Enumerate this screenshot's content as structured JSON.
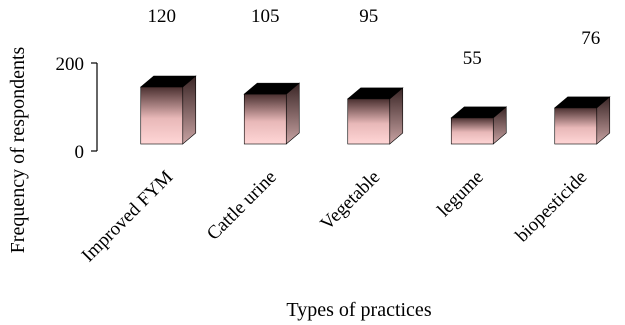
{
  "chart_data": {
    "type": "bar",
    "categories": [
      "Improved FYM",
      "Cattle urine",
      "Vegetable",
      "legume",
      "biopesticide"
    ],
    "values": [
      120,
      105,
      95,
      55,
      76
    ],
    "data_labels": [
      "120",
      "105",
      "95",
      "55",
      "76"
    ],
    "xlabel": "Types of practices",
    "ylabel": "Frequency of respondents",
    "yticks": [
      "0",
      "200"
    ],
    "ylim": [
      0,
      200
    ],
    "grid": false,
    "legend": "none",
    "bar_style": "3d-box",
    "colors": {
      "front_top": "#4a3030",
      "front_bottom": "#ffd6d6",
      "side": "#c9a3a3",
      "top_face": "#000000"
    }
  }
}
